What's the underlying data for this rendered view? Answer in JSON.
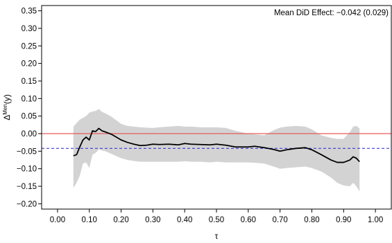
{
  "chart_data": {
    "type": "line",
    "annotation": "Mean DiD Effect: −0.042 (0.029)",
    "xlabel": "τ",
    "ylabel": {
      "base": "Δ",
      "sup": "Men",
      "suffix": "(y)"
    },
    "xlim": [
      -0.05,
      1.05
    ],
    "ylim": [
      -0.215,
      0.365
    ],
    "x_ticks": [
      0.0,
      0.1,
      0.2,
      0.3,
      0.4,
      0.5,
      0.6,
      0.7,
      0.8,
      0.9,
      1.0
    ],
    "x_tick_labels": [
      "0.00",
      "0.10",
      "0.20",
      "0.30",
      "0.40",
      "0.50",
      "0.60",
      "0.70",
      "0.80",
      "0.90",
      "1.00"
    ],
    "y_ticks": [
      -0.2,
      -0.15,
      -0.1,
      -0.05,
      0.0,
      0.05,
      0.1,
      0.15,
      0.2,
      0.25,
      0.3,
      0.35
    ],
    "y_tick_labels": [
      "−0.20",
      "−0.15",
      "−0.10",
      "−0.05",
      "0.00",
      "0.05",
      "0.10",
      "0.15",
      "0.20",
      "0.25",
      "0.30",
      "0.35"
    ],
    "hlines": [
      {
        "y": 0.0,
        "style": "solid",
        "color": "#e8595a"
      },
      {
        "y": -0.042,
        "style": "dashed",
        "color": "#3a3ad8"
      }
    ],
    "x": [
      0.05,
      0.06,
      0.07,
      0.08,
      0.09,
      0.1,
      0.11,
      0.12,
      0.13,
      0.14,
      0.15,
      0.17,
      0.2,
      0.22,
      0.24,
      0.26,
      0.28,
      0.3,
      0.32,
      0.35,
      0.38,
      0.4,
      0.42,
      0.45,
      0.48,
      0.5,
      0.53,
      0.56,
      0.6,
      0.62,
      0.65,
      0.68,
      0.7,
      0.72,
      0.75,
      0.78,
      0.8,
      0.83,
      0.86,
      0.88,
      0.9,
      0.92,
      0.93,
      0.94,
      0.95
    ],
    "series": [
      {
        "values": [
          -0.063,
          -0.06,
          -0.038,
          -0.018,
          -0.01,
          -0.018,
          0.008,
          0.006,
          0.015,
          0.008,
          0.005,
          -0.002,
          -0.018,
          -0.025,
          -0.03,
          -0.034,
          -0.033,
          -0.03,
          -0.031,
          -0.03,
          -0.032,
          -0.028,
          -0.03,
          -0.031,
          -0.032,
          -0.03,
          -0.033,
          -0.038,
          -0.038,
          -0.036,
          -0.04,
          -0.045,
          -0.05,
          -0.046,
          -0.042,
          -0.04,
          -0.046,
          -0.06,
          -0.075,
          -0.082,
          -0.082,
          -0.075,
          -0.066,
          -0.07,
          -0.08
        ]
      }
    ],
    "band": {
      "upper": [
        0.02,
        0.03,
        0.04,
        0.045,
        0.05,
        0.06,
        0.063,
        0.065,
        0.07,
        0.062,
        0.058,
        0.048,
        0.028,
        0.022,
        0.02,
        0.018,
        0.017,
        0.016,
        0.018,
        0.02,
        0.022,
        0.02,
        0.02,
        0.018,
        0.018,
        0.018,
        0.016,
        0.008,
        0.0,
        -0.002,
        -0.005,
        0.01,
        0.017,
        0.02,
        0.022,
        0.02,
        0.012,
        -0.005,
        -0.012,
        -0.015,
        -0.015,
        0.005,
        0.02,
        0.022,
        0.015
      ],
      "lower": [
        -0.155,
        -0.14,
        -0.12,
        -0.085,
        -0.082,
        -0.098,
        -0.06,
        -0.055,
        -0.045,
        -0.048,
        -0.05,
        -0.058,
        -0.07,
        -0.075,
        -0.078,
        -0.08,
        -0.08,
        -0.08,
        -0.08,
        -0.08,
        -0.08,
        -0.079,
        -0.08,
        -0.08,
        -0.082,
        -0.08,
        -0.082,
        -0.082,
        -0.082,
        -0.083,
        -0.085,
        -0.094,
        -0.1,
        -0.098,
        -0.096,
        -0.094,
        -0.098,
        -0.108,
        -0.125,
        -0.14,
        -0.148,
        -0.15,
        -0.14,
        -0.15,
        -0.165
      ]
    },
    "colors": {
      "band": "#d3d3d3",
      "line": "#000000",
      "axis": "#000000"
    }
  }
}
